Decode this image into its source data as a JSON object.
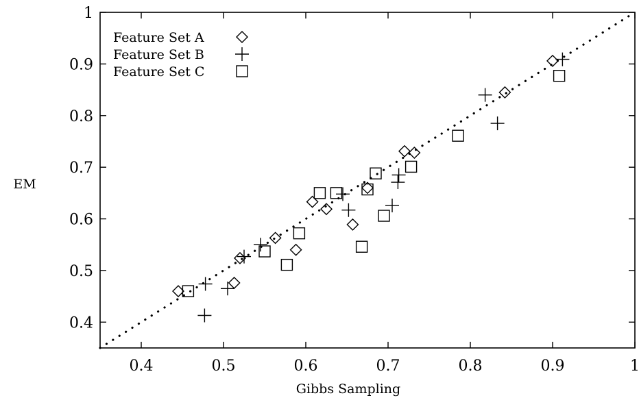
{
  "chart_data": {
    "type": "scatter",
    "xlabel": "Gibbs Sampling",
    "ylabel": "EM",
    "xlim": [
      0.35,
      1.0
    ],
    "ylim": [
      0.35,
      1.0
    ],
    "xticks": [
      "0.4",
      "0.5",
      "0.6",
      "0.7",
      "0.8",
      "0.9",
      "1"
    ],
    "yticks": [
      "0.4",
      "0.5",
      "0.6",
      "0.7",
      "0.8",
      "0.9",
      "1"
    ],
    "grid": false,
    "legend_position": "top-left",
    "reference_line": {
      "style": "dotted",
      "from": [
        0.35,
        0.35
      ],
      "to": [
        1.0,
        1.0
      ]
    },
    "series": [
      {
        "name": "Feature Set A",
        "marker": "diamond",
        "points": [
          [
            0.445,
            0.46
          ],
          [
            0.513,
            0.476
          ],
          [
            0.52,
            0.524
          ],
          [
            0.563,
            0.563
          ],
          [
            0.588,
            0.54
          ],
          [
            0.608,
            0.633
          ],
          [
            0.625,
            0.619
          ],
          [
            0.657,
            0.589
          ],
          [
            0.675,
            0.66
          ],
          [
            0.72,
            0.731
          ],
          [
            0.732,
            0.728
          ],
          [
            0.842,
            0.845
          ],
          [
            0.9,
            0.906
          ]
        ]
      },
      {
        "name": "Feature Set B",
        "marker": "plus",
        "points": [
          [
            0.477,
            0.413
          ],
          [
            0.478,
            0.474
          ],
          [
            0.505,
            0.465
          ],
          [
            0.525,
            0.527
          ],
          [
            0.545,
            0.55
          ],
          [
            0.645,
            0.648
          ],
          [
            0.652,
            0.617
          ],
          [
            0.705,
            0.626
          ],
          [
            0.712,
            0.671
          ],
          [
            0.713,
            0.685
          ],
          [
            0.818,
            0.84
          ],
          [
            0.833,
            0.785
          ],
          [
            0.912,
            0.909
          ]
        ]
      },
      {
        "name": "Feature Set C",
        "marker": "square",
        "points": [
          [
            0.457,
            0.46
          ],
          [
            0.55,
            0.537
          ],
          [
            0.577,
            0.511
          ],
          [
            0.592,
            0.572
          ],
          [
            0.617,
            0.65
          ],
          [
            0.637,
            0.65
          ],
          [
            0.668,
            0.546
          ],
          [
            0.675,
            0.657
          ],
          [
            0.685,
            0.688
          ],
          [
            0.695,
            0.606
          ],
          [
            0.728,
            0.701
          ],
          [
            0.785,
            0.761
          ],
          [
            0.908,
            0.877
          ]
        ]
      }
    ]
  }
}
